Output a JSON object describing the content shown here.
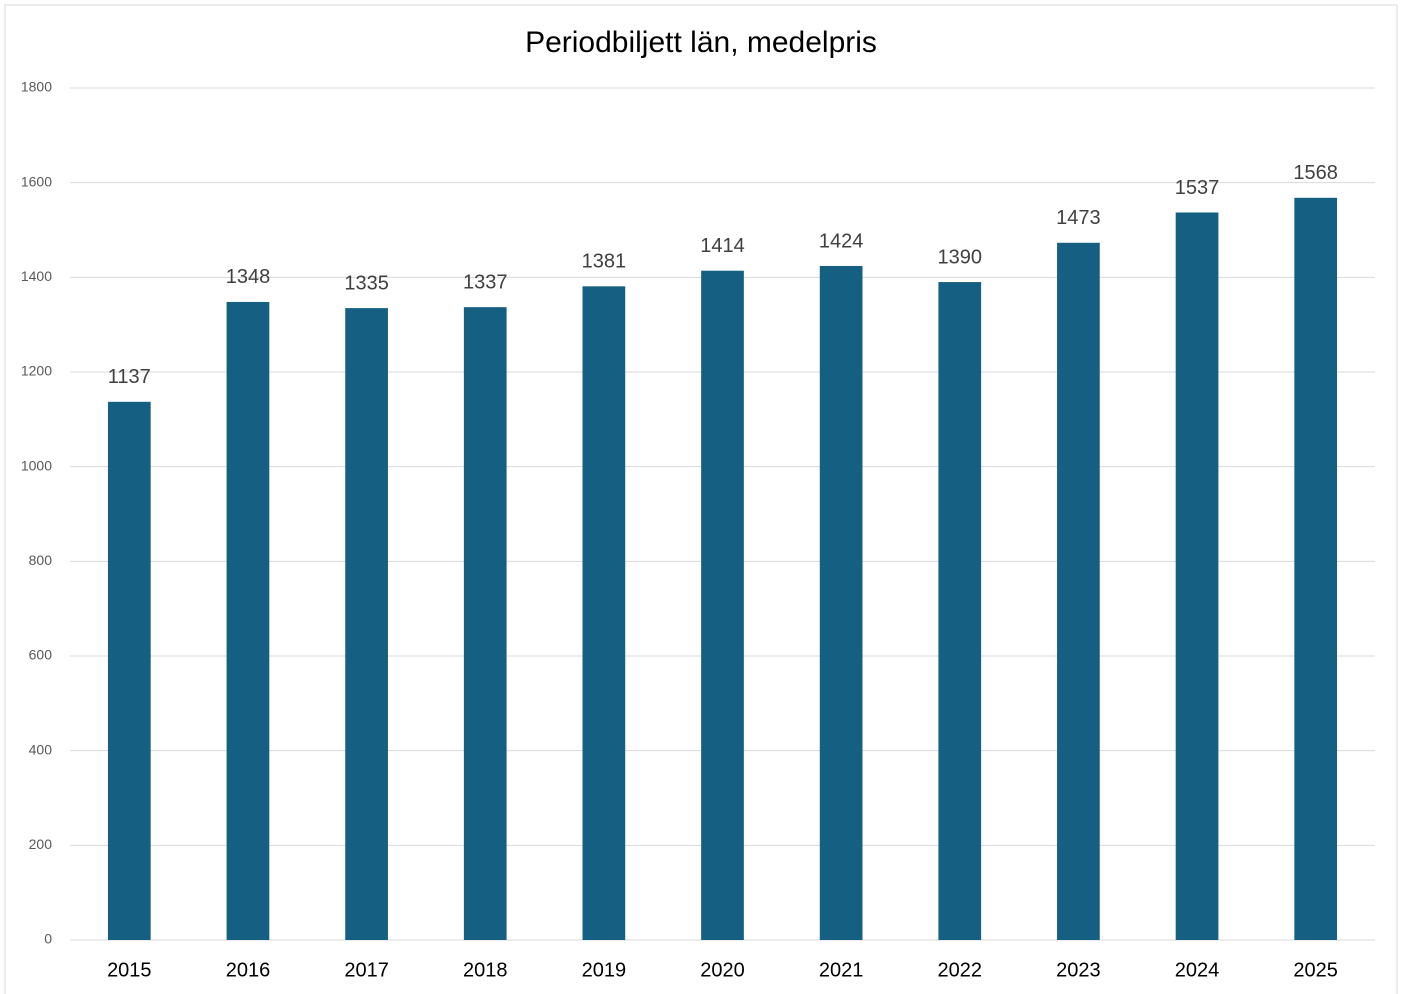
{
  "chart_data": {
    "type": "bar",
    "title": "Periodbiljett län, medelpris",
    "categories": [
      "2015",
      "2016",
      "2017",
      "2018",
      "2019",
      "2020",
      "2021",
      "2022",
      "2023",
      "2024",
      "2025"
    ],
    "values": [
      1137,
      1348,
      1335,
      1337,
      1381,
      1414,
      1424,
      1390,
      1473,
      1537,
      1568
    ],
    "color": "#156082",
    "ylim": [
      0,
      1800
    ],
    "yticks": [
      0,
      200,
      400,
      600,
      800,
      1000,
      1200,
      1400,
      1600,
      1800
    ],
    "grid": true
  }
}
